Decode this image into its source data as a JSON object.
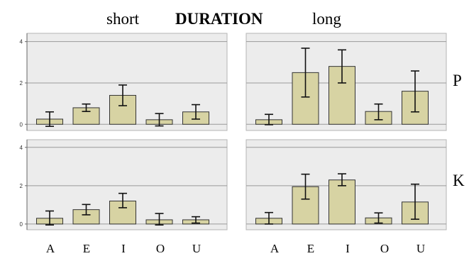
{
  "header": {
    "left": "short",
    "middle": "DURATION",
    "right": "long"
  },
  "colors": {
    "bar": "#d7d3a3",
    "bar_stroke": "#333333",
    "panel_bg": "#ececec",
    "grid": "#9a9a9a",
    "error": "#111111"
  },
  "chart_data": [
    {
      "type": "bar",
      "row": "P",
      "column": "short",
      "categories": [
        "A",
        "E",
        "I",
        "O",
        "U"
      ],
      "values": [
        0.25,
        0.8,
        1.4,
        0.22,
        0.6
      ],
      "error_low": [
        -0.1,
        0.62,
        0.9,
        -0.08,
        0.25
      ],
      "error_high": [
        0.6,
        0.98,
        1.9,
        0.52,
        0.95
      ],
      "ylim": [
        -0.3,
        4.4
      ],
      "yticks": [
        "0",
        "2",
        "4"
      ],
      "grid": true
    },
    {
      "type": "bar",
      "row": "P",
      "column": "long",
      "categories": [
        "A",
        "E",
        "I",
        "O",
        "U"
      ],
      "values": [
        0.22,
        2.5,
        2.8,
        0.62,
        1.6
      ],
      "error_low": [
        -0.02,
        1.32,
        2.0,
        0.22,
        0.6
      ],
      "error_high": [
        0.48,
        3.68,
        3.6,
        0.98,
        2.58
      ],
      "ylim": [
        -0.3,
        4.4
      ],
      "yticks": [],
      "grid": true
    },
    {
      "type": "bar",
      "row": "K",
      "column": "short",
      "categories": [
        "A",
        "E",
        "I",
        "O",
        "U"
      ],
      "values": [
        0.3,
        0.75,
        1.2,
        0.22,
        0.22
      ],
      "error_low": [
        -0.05,
        0.48,
        0.85,
        -0.05,
        0.05
      ],
      "error_high": [
        0.68,
        1.02,
        1.6,
        0.55,
        0.38
      ],
      "ylim": [
        -0.3,
        4.4
      ],
      "yticks": [
        "0",
        "2",
        "4"
      ],
      "grid": true
    },
    {
      "type": "bar",
      "row": "K",
      "column": "long",
      "categories": [
        "A",
        "E",
        "I",
        "O",
        "U"
      ],
      "values": [
        0.3,
        1.95,
        2.3,
        0.32,
        1.15
      ],
      "error_low": [
        0.0,
        1.3,
        2.0,
        0.05,
        0.25
      ],
      "error_high": [
        0.6,
        2.6,
        2.62,
        0.58,
        2.08
      ],
      "ylim": [
        -0.3,
        4.4
      ],
      "yticks": [],
      "grid": true
    }
  ],
  "row_labels": [
    "P",
    "K"
  ],
  "x_labels_short": [
    "A",
    "E",
    "I",
    "O",
    "U"
  ],
  "x_labels_long": [
    "A",
    "E",
    "I",
    "O",
    "U"
  ]
}
